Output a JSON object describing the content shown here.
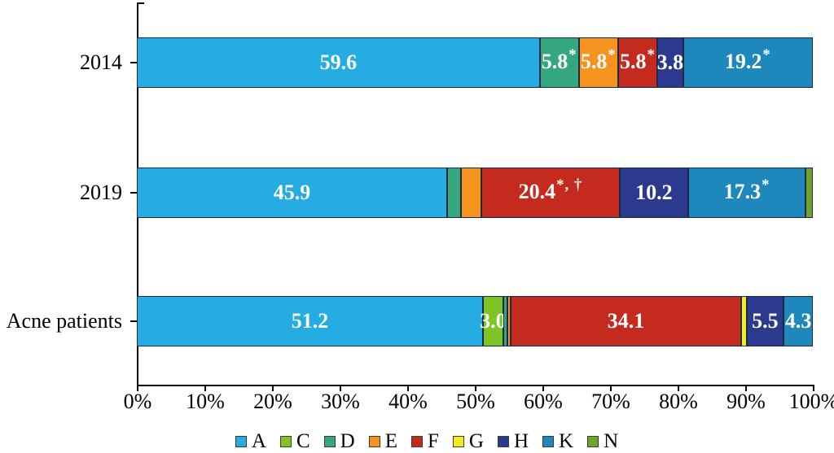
{
  "chart_data": {
    "type": "bar",
    "variant": "horizontal_stacked_percentage",
    "title": "",
    "xlabel": "",
    "ylabel": "",
    "x_axis": {
      "min": 0,
      "max": 100,
      "tick_step": 10,
      "tick_labels": [
        "0%",
        "10%",
        "20%",
        "30%",
        "40%",
        "50%",
        "60%",
        "70%",
        "80%",
        "90%",
        "100%"
      ]
    },
    "categories": [
      "2014",
      "2019",
      "Acne patients"
    ],
    "legend": {
      "position": "bottom",
      "entries": [
        {
          "key": "A",
          "color": "#25ACE3"
        },
        {
          "key": "C",
          "color": "#7EC425"
        },
        {
          "key": "D",
          "color": "#34A77E"
        },
        {
          "key": "E",
          "color": "#F6921E"
        },
        {
          "key": "F",
          "color": "#C52A1E"
        },
        {
          "key": "G",
          "color": "#F4EB1A"
        },
        {
          "key": "H",
          "color": "#2B3A8F"
        },
        {
          "key": "K",
          "color": "#1E87BC"
        },
        {
          "key": "N",
          "color": "#70A52B"
        }
      ]
    },
    "rows": [
      {
        "category": "2014",
        "segments": [
          {
            "key": "A",
            "value": 59.6,
            "label": "59.6",
            "mark": ""
          },
          {
            "key": "D",
            "value": 5.8,
            "label": "5.8",
            "mark": "*"
          },
          {
            "key": "E",
            "value": 5.8,
            "label": "5.8",
            "mark": "*"
          },
          {
            "key": "F",
            "value": 5.8,
            "label": "5.8",
            "mark": "*"
          },
          {
            "key": "H",
            "value": 3.8,
            "label": "3.8",
            "mark": ""
          },
          {
            "key": "K",
            "value": 19.2,
            "label": "19.2",
            "mark": "*"
          }
        ]
      },
      {
        "category": "2019",
        "segments": [
          {
            "key": "A",
            "value": 45.9,
            "label": "45.9",
            "mark": ""
          },
          {
            "key": "D",
            "value": 2.0,
            "label": "",
            "mark": ""
          },
          {
            "key": "E",
            "value": 3.1,
            "label": "",
            "mark": ""
          },
          {
            "key": "F",
            "value": 20.4,
            "label": "20.4",
            "mark": "*, †"
          },
          {
            "key": "H",
            "value": 10.2,
            "label": "10.2",
            "mark": ""
          },
          {
            "key": "K",
            "value": 17.3,
            "label": "17.3",
            "mark": "*"
          },
          {
            "key": "N",
            "value": 1.1,
            "label": "",
            "mark": ""
          }
        ]
      },
      {
        "category": "Acne patients",
        "segments": [
          {
            "key": "A",
            "value": 51.2,
            "label": "51.2",
            "mark": ""
          },
          {
            "key": "C",
            "value": 3.0,
            "label": "3.0",
            "mark": ""
          },
          {
            "key": "D",
            "value": 0.6,
            "label": "",
            "mark": ""
          },
          {
            "key": "E",
            "value": 0.5,
            "label": "",
            "mark": ""
          },
          {
            "key": "F",
            "value": 34.1,
            "label": "34.1",
            "mark": ""
          },
          {
            "key": "G",
            "value": 0.8,
            "label": "",
            "mark": ""
          },
          {
            "key": "H",
            "value": 5.5,
            "label": "5.5",
            "mark": ""
          },
          {
            "key": "K",
            "value": 4.3,
            "label": "4.3",
            "mark": ""
          }
        ]
      }
    ],
    "colors": {
      "A": "#25ACE3",
      "C": "#7EC425",
      "D": "#34A77E",
      "E": "#F6921E",
      "F": "#C52A1E",
      "G": "#F4EB1A",
      "H": "#2B3A8F",
      "K": "#1E87BC",
      "N": "#70A52B"
    },
    "segment_border_color": "#1A2A45",
    "grid": false
  }
}
